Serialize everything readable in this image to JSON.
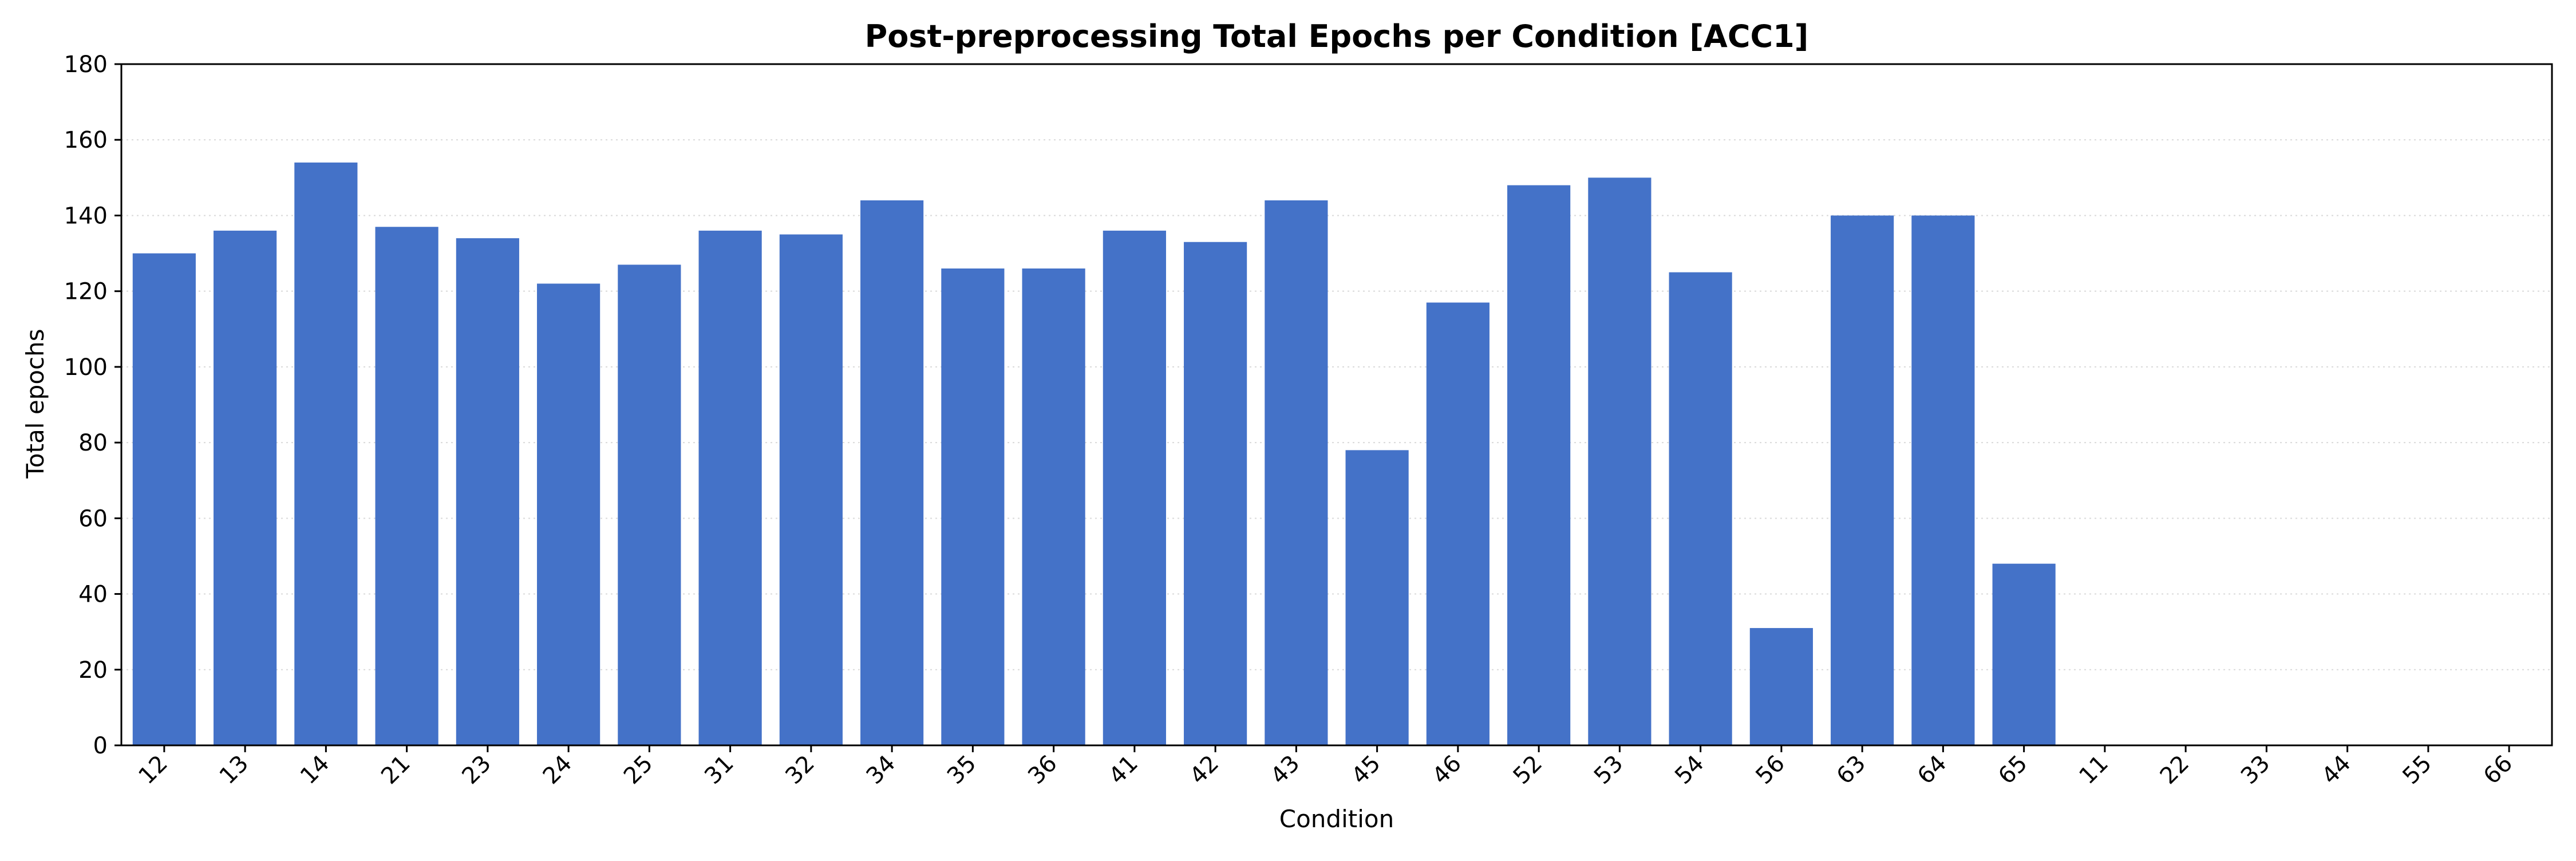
{
  "chart_data": {
    "type": "bar",
    "title": "Post-preprocessing Total Epochs per Condition [ACC1]",
    "xlabel": "Condition",
    "ylabel": "Total epochs",
    "categories": [
      "12",
      "13",
      "14",
      "21",
      "23",
      "24",
      "25",
      "31",
      "32",
      "34",
      "35",
      "36",
      "41",
      "42",
      "43",
      "45",
      "46",
      "52",
      "53",
      "54",
      "56",
      "63",
      "64",
      "65",
      "11",
      "22",
      "33",
      "44",
      "55",
      "66"
    ],
    "values": [
      130,
      136,
      154,
      137,
      134,
      122,
      127,
      136,
      135,
      144,
      126,
      126,
      136,
      133,
      144,
      78,
      117,
      148,
      150,
      125,
      31,
      140,
      140,
      48,
      0,
      0,
      0,
      0,
      0,
      0
    ],
    "ylim": [
      0,
      180
    ],
    "yticks": [
      0,
      20,
      40,
      60,
      80,
      100,
      120,
      140,
      160,
      180
    ],
    "grid": "horizontal dotted",
    "bar_color": "#4472c8",
    "legend": "none"
  }
}
